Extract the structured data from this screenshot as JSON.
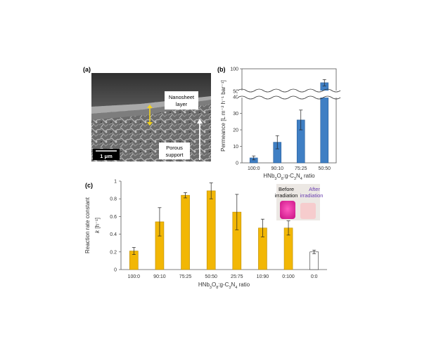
{
  "panels": {
    "a": {
      "label": "(a)",
      "annotations": {
        "nanosheet_line1": "Nanosheet",
        "nanosheet_line2": "layer",
        "porous_line1": "Porous",
        "porous_line2": "support",
        "scalebar": "1 μm"
      }
    },
    "b": {
      "label": "(b)"
    },
    "c": {
      "label": "(c)",
      "inset": {
        "before_line1": "Before",
        "before_line2": "irradiation",
        "after_line1": "After",
        "after_line2": "irradiation"
      }
    }
  },
  "colors": {
    "blue_bar": "#3f7fc4",
    "orange_bar": "#f2b705",
    "white_bar": "#ffffff",
    "magenta": "#e7389f",
    "after_text": "#6a3fb0"
  },
  "chart_data": [
    {
      "panel": "b",
      "type": "bar",
      "categories": [
        "100:0",
        "90:10",
        "75:25",
        "50:50"
      ],
      "values": [
        3,
        12.5,
        26,
        69
      ],
      "errors": [
        1.2,
        4,
        6,
        7
      ],
      "ylabel": "Permeance [L m⁻² h⁻¹ bar⁻¹]",
      "xlabel_parts": [
        "HNb",
        "3",
        "O",
        "8",
        ":g-C",
        "3",
        "N",
        "4",
        " ratio"
      ],
      "broken_axis": {
        "lower": [
          0,
          40
        ],
        "upper": [
          50,
          100
        ]
      },
      "yticks": [
        0,
        10,
        20,
        30,
        40,
        50,
        100
      ],
      "grid": false
    },
    {
      "panel": "c",
      "type": "bar",
      "categories": [
        "100:0",
        "90:10",
        "75:25",
        "50:50",
        "25:75",
        "10:90",
        "0:100",
        "0:0"
      ],
      "values": [
        0.21,
        0.54,
        0.84,
        0.89,
        0.65,
        0.47,
        0.47,
        0.2
      ],
      "errors": [
        0.04,
        0.16,
        0.03,
        0.09,
        0.2,
        0.1,
        0.08,
        0.02
      ],
      "ylabel_line1": "Reaction rate constant",
      "ylabel_k": "k",
      "ylabel_unit": " [h⁻¹]",
      "xlabel_parts": [
        "HNb",
        "3",
        "O",
        "8",
        ":g-C",
        "3",
        "N",
        "4",
        " ratio"
      ],
      "ylim": [
        0,
        1
      ],
      "yticks": [
        0,
        0.2,
        0.4,
        0.6,
        0.8,
        1
      ],
      "ytick_labels": [
        "0",
        "0.2",
        "0.4",
        "0.6",
        "0.8",
        "1"
      ],
      "grid": false
    }
  ]
}
